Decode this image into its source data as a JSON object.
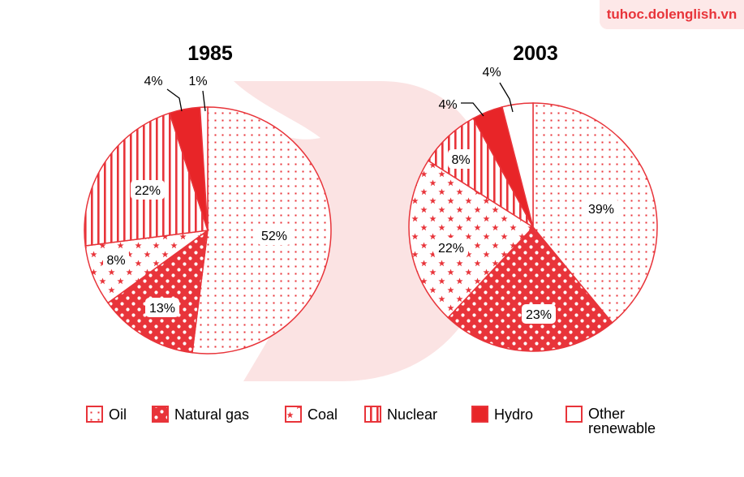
{
  "brand": {
    "site": "tuhoc.dolenglish.vn"
  },
  "colors": {
    "accent": "#e8343a",
    "watermark": "#fbe3e3",
    "label_bg": "#ffffff"
  },
  "chart_data": [
    {
      "type": "pie",
      "title": "1985",
      "slices": [
        {
          "label": "Oil",
          "value": 52,
          "pattern": "oil",
          "text": "52%"
        },
        {
          "label": "Natural gas",
          "value": 13,
          "pattern": "gas",
          "text": "13%"
        },
        {
          "label": "Coal",
          "value": 8,
          "pattern": "coal",
          "text": "8%"
        },
        {
          "label": "Nuclear",
          "value": 22,
          "pattern": "nuclear",
          "text": "22%"
        },
        {
          "label": "Hydro",
          "value": 4,
          "pattern": "hydro",
          "text": "4%"
        },
        {
          "label": "Other renewable",
          "value": 1,
          "pattern": "other",
          "text": "1%"
        }
      ]
    },
    {
      "type": "pie",
      "title": "2003",
      "slices": [
        {
          "label": "Oil",
          "value": 39,
          "pattern": "oil",
          "text": "39%"
        },
        {
          "label": "Natural gas",
          "value": 23,
          "pattern": "gas",
          "text": "23%"
        },
        {
          "label": "Coal",
          "value": 22,
          "pattern": "coal",
          "text": "22%"
        },
        {
          "label": "Nuclear",
          "value": 8,
          "pattern": "nuclear",
          "text": "8%"
        },
        {
          "label": "Hydro",
          "value": 4,
          "pattern": "hydro",
          "text": "4%"
        },
        {
          "label": "Other renewable",
          "value": 4,
          "pattern": "other",
          "text": "4%"
        }
      ]
    }
  ],
  "legend": [
    {
      "label": "Oil",
      "pattern": "oil"
    },
    {
      "label": "Natural gas",
      "pattern": "gas"
    },
    {
      "label": "Coal",
      "pattern": "coal"
    },
    {
      "label": "Nuclear",
      "pattern": "nuclear"
    },
    {
      "label": "Hydro",
      "pattern": "hydro"
    },
    {
      "label": "Other renewable",
      "pattern": "other"
    }
  ]
}
